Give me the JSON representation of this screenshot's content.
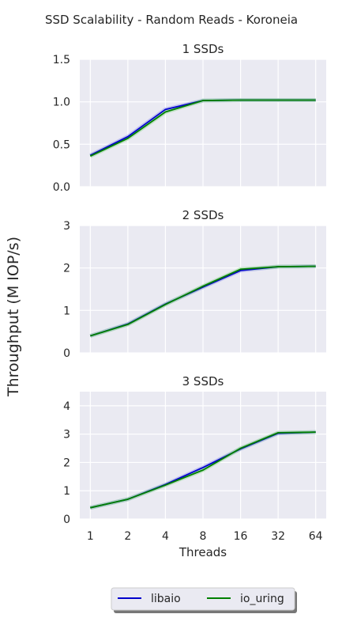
{
  "figure": {
    "title": "SSD Scalability - Random Reads - Koroneia",
    "shared_ylabel": "Throughput (M IOP/s)"
  },
  "chart_data": [
    {
      "type": "line",
      "title": "1 SSDs",
      "xlabel": "",
      "ylabel": "",
      "x": [
        1,
        2,
        4,
        8,
        16,
        32,
        64
      ],
      "x_scale": "log2",
      "ylim": [
        0,
        1.5
      ],
      "yticks": [
        0.0,
        0.5,
        1.0,
        1.5
      ],
      "ytick_labels": [
        "0.0",
        "0.5",
        "1.0",
        "1.5"
      ],
      "grid": true,
      "series": [
        {
          "name": "libaio",
          "color": "#0000cc",
          "values": [
            0.37,
            0.59,
            0.91,
            1.015,
            1.02,
            1.02,
            1.02
          ]
        },
        {
          "name": "io_uring",
          "color": "#008000",
          "values": [
            0.36,
            0.57,
            0.88,
            1.015,
            1.02,
            1.02,
            1.02
          ]
        }
      ]
    },
    {
      "type": "line",
      "title": "2 SSDs",
      "xlabel": "",
      "ylabel": "",
      "x": [
        1,
        2,
        4,
        8,
        16,
        32,
        64
      ],
      "x_scale": "log2",
      "ylim": [
        0,
        3.0
      ],
      "yticks": [
        0,
        1,
        2,
        3
      ],
      "ytick_labels": [
        "0",
        "1",
        "2",
        "3"
      ],
      "grid": true,
      "series": [
        {
          "name": "libaio",
          "color": "#0000cc",
          "values": [
            0.4,
            0.68,
            1.15,
            1.55,
            1.94,
            2.03,
            2.04
          ]
        },
        {
          "name": "io_uring",
          "color": "#008000",
          "values": [
            0.4,
            0.67,
            1.14,
            1.57,
            1.97,
            2.03,
            2.04
          ]
        }
      ]
    },
    {
      "type": "line",
      "title": "3 SSDs",
      "xlabel": "Threads",
      "ylabel": "",
      "x": [
        1,
        2,
        4,
        8,
        16,
        32,
        64
      ],
      "x_scale": "log2",
      "xtick_labels": [
        "1",
        "2",
        "4",
        "8",
        "16",
        "32",
        "64"
      ],
      "ylim": [
        0,
        4.5
      ],
      "yticks": [
        0,
        1,
        2,
        3,
        4
      ],
      "ytick_labels": [
        "0",
        "1",
        "2",
        "3",
        "4"
      ],
      "grid": true,
      "series": [
        {
          "name": "libaio",
          "color": "#0000cc",
          "values": [
            0.4,
            0.7,
            1.22,
            1.82,
            2.48,
            3.03,
            3.07
          ]
        },
        {
          "name": "io_uring",
          "color": "#008000",
          "values": [
            0.4,
            0.7,
            1.2,
            1.73,
            2.5,
            3.05,
            3.07
          ]
        }
      ]
    }
  ],
  "legend": {
    "placement": "bottom-center",
    "entries": [
      {
        "label": "libaio",
        "color": "#0000cc"
      },
      {
        "label": "io_uring",
        "color": "#008000"
      }
    ]
  },
  "colors": {
    "axes_background": "#eaeaf2",
    "grid": "#ffffff",
    "band_libaio": "#9c9cf0",
    "band_io_uring": "#9ad89a"
  }
}
